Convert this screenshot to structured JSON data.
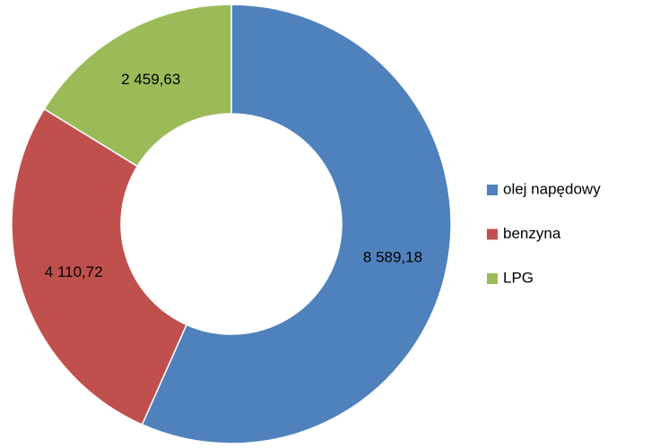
{
  "chart_data": {
    "type": "doughnut",
    "categories": [
      "olej napędowy",
      "benzyna",
      "LPG"
    ],
    "values": [
      8589.18,
      4110.72,
      2459.63
    ],
    "value_labels": [
      "8 589,18",
      "4 110,72",
      "2 459,63"
    ],
    "colors": [
      "#4f81bd",
      "#c0504d",
      "#9bbb59"
    ],
    "legend": "right"
  }
}
